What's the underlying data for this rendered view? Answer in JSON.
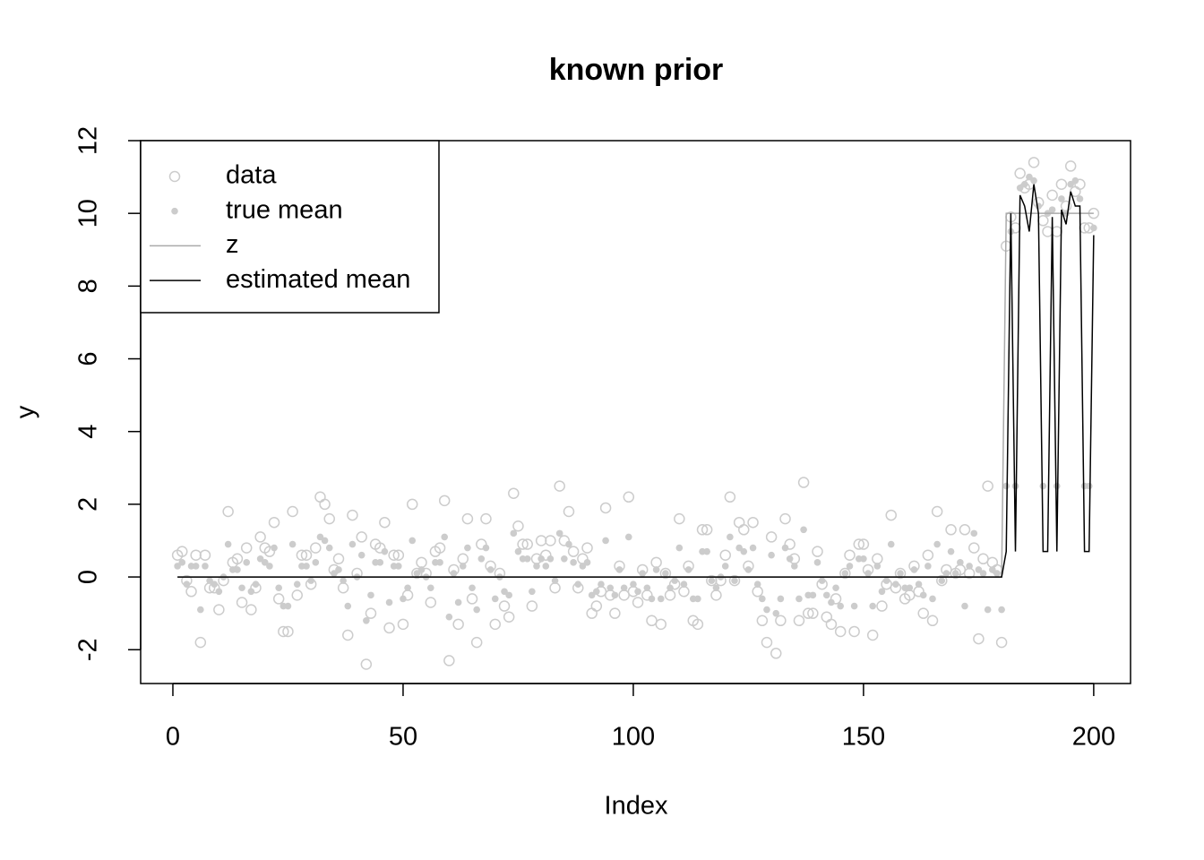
{
  "chart_data": {
    "type": "scatter",
    "title": "known prior",
    "x_label": "Index",
    "y_label": "y",
    "x": [
      1,
      2,
      3,
      4,
      5,
      6,
      7,
      8,
      9,
      10,
      11,
      12,
      13,
      14,
      15,
      16,
      17,
      18,
      19,
      20,
      21,
      22,
      23,
      24,
      25,
      26,
      27,
      28,
      29,
      30,
      31,
      32,
      33,
      34,
      35,
      36,
      37,
      38,
      39,
      40,
      41,
      42,
      43,
      44,
      45,
      46,
      47,
      48,
      49,
      50,
      51,
      52,
      53,
      54,
      55,
      56,
      57,
      58,
      59,
      60,
      61,
      62,
      63,
      64,
      65,
      66,
      67,
      68,
      69,
      70,
      71,
      72,
      73,
      74,
      75,
      76,
      77,
      78,
      79,
      80,
      81,
      82,
      83,
      84,
      85,
      86,
      87,
      88,
      89,
      90,
      91,
      92,
      93,
      94,
      95,
      96,
      97,
      98,
      99,
      100,
      101,
      102,
      103,
      104,
      105,
      106,
      107,
      108,
      109,
      110,
      111,
      112,
      113,
      114,
      115,
      116,
      117,
      118,
      119,
      120,
      121,
      122,
      123,
      124,
      125,
      126,
      127,
      128,
      129,
      130,
      131,
      132,
      133,
      134,
      135,
      136,
      137,
      138,
      139,
      140,
      141,
      142,
      143,
      144,
      145,
      146,
      147,
      148,
      149,
      150,
      151,
      152,
      153,
      154,
      155,
      156,
      157,
      158,
      159,
      160,
      161,
      162,
      163,
      164,
      165,
      166,
      167,
      168,
      169,
      170,
      171,
      172,
      173,
      174,
      175,
      176,
      177,
      178,
      179,
      180,
      181,
      182,
      183,
      184,
      185,
      186,
      187,
      188,
      189,
      190,
      191,
      192,
      193,
      194,
      195,
      196,
      197,
      198,
      199,
      200
    ],
    "series": [
      {
        "name": "data",
        "style": "open-points",
        "color": "#cccccc",
        "values": [
          0.6,
          0.7,
          -0.1,
          -0.4,
          0.6,
          -1.8,
          0.6,
          -0.3,
          -0.3,
          -0.9,
          -0.1,
          1.8,
          0.4,
          0.5,
          -0.7,
          0.8,
          -0.9,
          -0.3,
          1.1,
          0.8,
          0.7,
          1.5,
          -0.6,
          -1.5,
          -1.5,
          1.8,
          -0.5,
          0.6,
          0.6,
          -0.2,
          0.8,
          2.2,
          2.0,
          1.6,
          0.2,
          0.5,
          -0.3,
          -1.6,
          1.7,
          0.1,
          1.1,
          -2.4,
          -1.0,
          0.9,
          0.8,
          1.5,
          -1.4,
          0.6,
          0.6,
          -1.3,
          -0.5,
          2.0,
          0.1,
          0.4,
          0.1,
          -0.7,
          0.7,
          0.8,
          2.1,
          -2.3,
          0.2,
          -1.3,
          0.5,
          1.6,
          -0.6,
          -1.8,
          0.9,
          1.6,
          0.3,
          -1.3,
          0.1,
          -0.8,
          -1.1,
          2.3,
          1.4,
          0.9,
          0.9,
          -0.8,
          0.5,
          1.0,
          0.6,
          1.0,
          -0.3,
          2.5,
          1.0,
          1.8,
          0.7,
          -0.3,
          0.5,
          0.8,
          -1.0,
          -0.8,
          -0.4,
          1.9,
          -0.5,
          -1.0,
          0.3,
          -0.5,
          2.2,
          -0.4,
          -0.7,
          0.2,
          -0.5,
          -1.2,
          0.4,
          -1.3,
          0.1,
          -0.5,
          -0.2,
          1.6,
          -0.4,
          0.3,
          -1.2,
          -1.3,
          1.3,
          1.3,
          -0.1,
          -0.5,
          -0.1,
          0.6,
          2.2,
          -0.1,
          1.5,
          1.3,
          0.3,
          1.5,
          -0.4,
          -1.2,
          -1.8,
          1.1,
          -2.1,
          -1.2,
          1.6,
          0.9,
          0.5,
          -1.2,
          2.6,
          -1.0,
          -1.0,
          0.7,
          -0.2,
          -1.1,
          -1.3,
          -0.6,
          -1.5,
          0.1,
          0.6,
          -1.5,
          0.9,
          0.9,
          0.2,
          -1.6,
          0.5,
          -0.8,
          -0.2,
          1.7,
          -0.3,
          0.1,
          -0.6,
          -0.5,
          0.3,
          -0.4,
          -1.0,
          0.6,
          -1.2,
          1.8,
          -0.1,
          0.2,
          1.3,
          0.1,
          0.2,
          1.3,
          0.1,
          0.8,
          -1.7,
          0.5,
          2.5,
          0.4,
          0.2,
          -1.8,
          9.1,
          9.9,
          9.6,
          11.1,
          10.7,
          10.8,
          11.4,
          10.3,
          9.8,
          9.5,
          10.5,
          9.5,
          10.8,
          10.2,
          11.3,
          10.6,
          10.8,
          9.6,
          9.6,
          10.0
        ]
      },
      {
        "name": "true mean",
        "style": "filled-points",
        "color": "#cccccc",
        "values": [
          0.3,
          0.4,
          -0.2,
          0.3,
          0.3,
          -0.9,
          0.3,
          -0.1,
          -0.2,
          -0.4,
          0.0,
          0.9,
          0.2,
          0.2,
          -0.3,
          0.4,
          -0.4,
          -0.2,
          0.5,
          0.4,
          0.3,
          0.8,
          -0.3,
          -0.8,
          -0.8,
          0.9,
          -0.2,
          0.3,
          0.3,
          -0.1,
          0.4,
          1.1,
          1.0,
          0.8,
          0.1,
          0.2,
          -0.1,
          -0.8,
          0.9,
          0.0,
          0.6,
          -1.2,
          -0.5,
          0.4,
          0.4,
          0.7,
          -0.7,
          0.3,
          0.3,
          -0.6,
          -0.3,
          1.0,
          0.1,
          0.2,
          0.0,
          -0.3,
          0.4,
          0.4,
          1.1,
          -1.1,
          0.1,
          -0.7,
          0.3,
          0.8,
          -0.3,
          -0.9,
          0.5,
          0.8,
          0.2,
          -0.6,
          0.0,
          -0.4,
          -0.5,
          1.2,
          0.7,
          0.5,
          0.5,
          -0.4,
          0.3,
          0.5,
          0.3,
          0.5,
          -0.1,
          1.2,
          0.5,
          0.9,
          0.4,
          -0.2,
          0.3,
          0.4,
          -0.5,
          -0.4,
          -0.2,
          1.0,
          -0.3,
          -0.5,
          0.2,
          -0.3,
          1.1,
          -0.2,
          -0.4,
          0.1,
          -0.3,
          -0.6,
          0.2,
          -0.6,
          0.1,
          -0.3,
          -0.1,
          0.8,
          -0.2,
          0.2,
          -0.6,
          -0.6,
          0.7,
          0.7,
          -0.1,
          -0.3,
          0.0,
          0.3,
          1.1,
          -0.1,
          0.8,
          0.7,
          0.2,
          0.8,
          -0.2,
          -0.6,
          -0.9,
          0.6,
          -1.0,
          -0.6,
          0.8,
          0.5,
          0.3,
          -0.6,
          1.3,
          -0.5,
          -0.5,
          0.4,
          -0.1,
          -0.5,
          -0.7,
          -0.3,
          -0.8,
          0.1,
          0.3,
          -0.8,
          0.5,
          0.5,
          0.1,
          -0.8,
          0.3,
          -0.4,
          -0.1,
          0.9,
          -0.2,
          0.1,
          -0.3,
          -0.3,
          0.2,
          -0.2,
          -0.5,
          0.3,
          -0.6,
          0.9,
          -0.1,
          0.1,
          0.7,
          0.1,
          0.4,
          -0.8,
          0.3,
          1.2,
          0.2,
          0.1,
          -0.9,
          0.2,
          0.1,
          -0.9,
          2.5,
          9.5,
          2.5,
          10.7,
          10.8,
          11.0,
          10.9,
          10.2,
          2.5,
          10.0,
          10.1,
          2.5,
          10.4,
          10.0,
          10.8,
          10.9,
          10.4,
          2.5,
          2.5,
          9.6
        ]
      },
      {
        "name": "z",
        "style": "line",
        "color": "#aaaaaa",
        "values": [
          0,
          0,
          0,
          0,
          0,
          0,
          0,
          0,
          0,
          0,
          0,
          0,
          0,
          0,
          0,
          0,
          0,
          0,
          0,
          0,
          0,
          0,
          0,
          0,
          0,
          0,
          0,
          0,
          0,
          0,
          0,
          0,
          0,
          0,
          0,
          0,
          0,
          0,
          0,
          0,
          0,
          0,
          0,
          0,
          0,
          0,
          0,
          0,
          0,
          0,
          0,
          0,
          0,
          0,
          0,
          0,
          0,
          0,
          0,
          0,
          0,
          0,
          0,
          0,
          0,
          0,
          0,
          0,
          0,
          0,
          0,
          0,
          0,
          0,
          0,
          0,
          0,
          0,
          0,
          0,
          0,
          0,
          0,
          0,
          0,
          0,
          0,
          0,
          0,
          0,
          0,
          0,
          0,
          0,
          0,
          0,
          0,
          0,
          0,
          0,
          0,
          0,
          0,
          0,
          0,
          0,
          0,
          0,
          0,
          0,
          0,
          0,
          0,
          0,
          0,
          0,
          0,
          0,
          0,
          0,
          0,
          0,
          0,
          0,
          0,
          0,
          0,
          0,
          0,
          0,
          0,
          0,
          0,
          0,
          0,
          0,
          0,
          0,
          0,
          0,
          0,
          0,
          0,
          0,
          0,
          0,
          0,
          0,
          0,
          0,
          0,
          0,
          0,
          0,
          0,
          0,
          0,
          0,
          0,
          0,
          0,
          0,
          0,
          0,
          0,
          0,
          0,
          0,
          0,
          0,
          0,
          0,
          0,
          0,
          0,
          0,
          0,
          0,
          0,
          0,
          10,
          10,
          10,
          10,
          10,
          10,
          10,
          10,
          10,
          10,
          10,
          10,
          10,
          10,
          10,
          10,
          10,
          10,
          10,
          10
        ]
      },
      {
        "name": "estimated mean",
        "style": "line",
        "color": "#000000",
        "values": [
          0,
          0,
          0,
          0,
          0,
          0,
          0,
          0,
          0,
          0,
          0,
          0,
          0,
          0,
          0,
          0,
          0,
          0,
          0,
          0,
          0,
          0,
          0,
          0,
          0,
          0,
          0,
          0,
          0,
          0,
          0,
          0,
          0,
          0,
          0,
          0,
          0,
          0,
          0,
          0,
          0,
          0,
          0,
          0,
          0,
          0,
          0,
          0,
          0,
          0,
          0,
          0,
          0,
          0,
          0,
          0,
          0,
          0,
          0,
          0,
          0,
          0,
          0,
          0,
          0,
          0,
          0,
          0,
          0,
          0,
          0,
          0,
          0,
          0,
          0,
          0,
          0,
          0,
          0,
          0,
          0,
          0,
          0,
          0,
          0,
          0,
          0,
          0,
          0,
          0,
          0,
          0,
          0,
          0,
          0,
          0,
          0,
          0,
          0,
          0,
          0,
          0,
          0,
          0,
          0,
          0,
          0,
          0,
          0,
          0,
          0,
          0,
          0,
          0,
          0,
          0,
          0,
          0,
          0,
          0,
          0,
          0,
          0,
          0,
          0,
          0,
          0,
          0,
          0,
          0,
          0,
          0,
          0,
          0,
          0,
          0,
          0,
          0,
          0,
          0,
          0,
          0,
          0,
          0,
          0,
          0,
          0,
          0,
          0,
          0,
          0,
          0,
          0,
          0,
          0,
          0,
          0,
          0,
          0,
          0,
          0,
          0,
          0,
          0,
          0,
          0,
          0,
          0,
          0,
          0,
          0,
          0,
          0,
          0,
          0,
          0,
          0,
          0,
          0,
          0,
          0.7,
          10.0,
          0.7,
          10.5,
          10.2,
          9.5,
          10.8,
          10.0,
          0.7,
          0.7,
          9.9,
          0.7,
          10.1,
          9.7,
          10.6,
          10.2,
          10.2,
          0.7,
          0.7,
          9.4
        ]
      }
    ],
    "xlim": [
      -7,
      208
    ],
    "ylim": [
      -2.93,
      12.0
    ],
    "xticks": [
      0,
      50,
      100,
      150,
      200
    ],
    "yticks": [
      -2,
      0,
      2,
      4,
      6,
      8,
      10,
      12
    ],
    "legend": "top-left"
  }
}
